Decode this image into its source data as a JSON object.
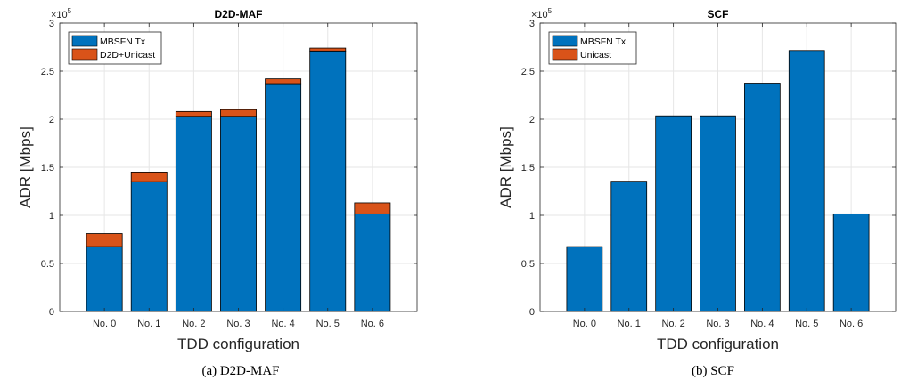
{
  "colors": {
    "stack_bottom": "#0072BD",
    "stack_top": "#D95319",
    "grid": "#e6e6e6",
    "axis": "#262626"
  },
  "chart_data": [
    {
      "type": "bar",
      "stacked": true,
      "title": "D2D-MAF",
      "xlabel": "TDD configuration",
      "ylabel": "ADR [Mbps]",
      "exponent_label": "×10^5",
      "categories": [
        "No. 0",
        "No. 1",
        "No. 2",
        "No. 3",
        "No. 4",
        "No. 5",
        "No. 6"
      ],
      "ylim": [
        0,
        300000
      ],
      "yticks": [
        0,
        50000,
        100000,
        150000,
        200000,
        250000,
        300000
      ],
      "ytick_labels": [
        "0",
        "0.5",
        "1",
        "1.5",
        "2",
        "2.5",
        "3"
      ],
      "grid": true,
      "legend_position": "top-left",
      "series": [
        {
          "name": "MBSFN Tx",
          "color": "#0072BD",
          "values": [
            67500,
            135000,
            203000,
            203000,
            237000,
            271000,
            101500
          ]
        },
        {
          "name": "D2D+Unicast",
          "color": "#D95319",
          "values": [
            13500,
            10000,
            5000,
            7000,
            5000,
            3000,
            11500
          ]
        }
      ],
      "caption": "(a)  D2D-MAF"
    },
    {
      "type": "bar",
      "stacked": true,
      "title": "SCF",
      "xlabel": "TDD configuration",
      "ylabel": "ADR [Mbps]",
      "exponent_label": "×10^5",
      "categories": [
        "No. 0",
        "No. 1",
        "No. 2",
        "No. 3",
        "No. 4",
        "No. 5",
        "No. 6"
      ],
      "ylim": [
        0,
        300000
      ],
      "yticks": [
        0,
        50000,
        100000,
        150000,
        200000,
        250000,
        300000
      ],
      "ytick_labels": [
        "0",
        "0.5",
        "1",
        "1.5",
        "2",
        "2.5",
        "3"
      ],
      "grid": true,
      "legend_position": "top-left",
      "series": [
        {
          "name": "MBSFN Tx",
          "color": "#0072BD",
          "values": [
            67500,
            135500,
            203500,
            203500,
            237500,
            271500,
            101500
          ]
        },
        {
          "name": "Unicast",
          "color": "#D95319",
          "values": [
            0,
            0,
            0,
            0,
            0,
            0,
            0
          ]
        }
      ],
      "caption": "(b)  SCF"
    }
  ]
}
